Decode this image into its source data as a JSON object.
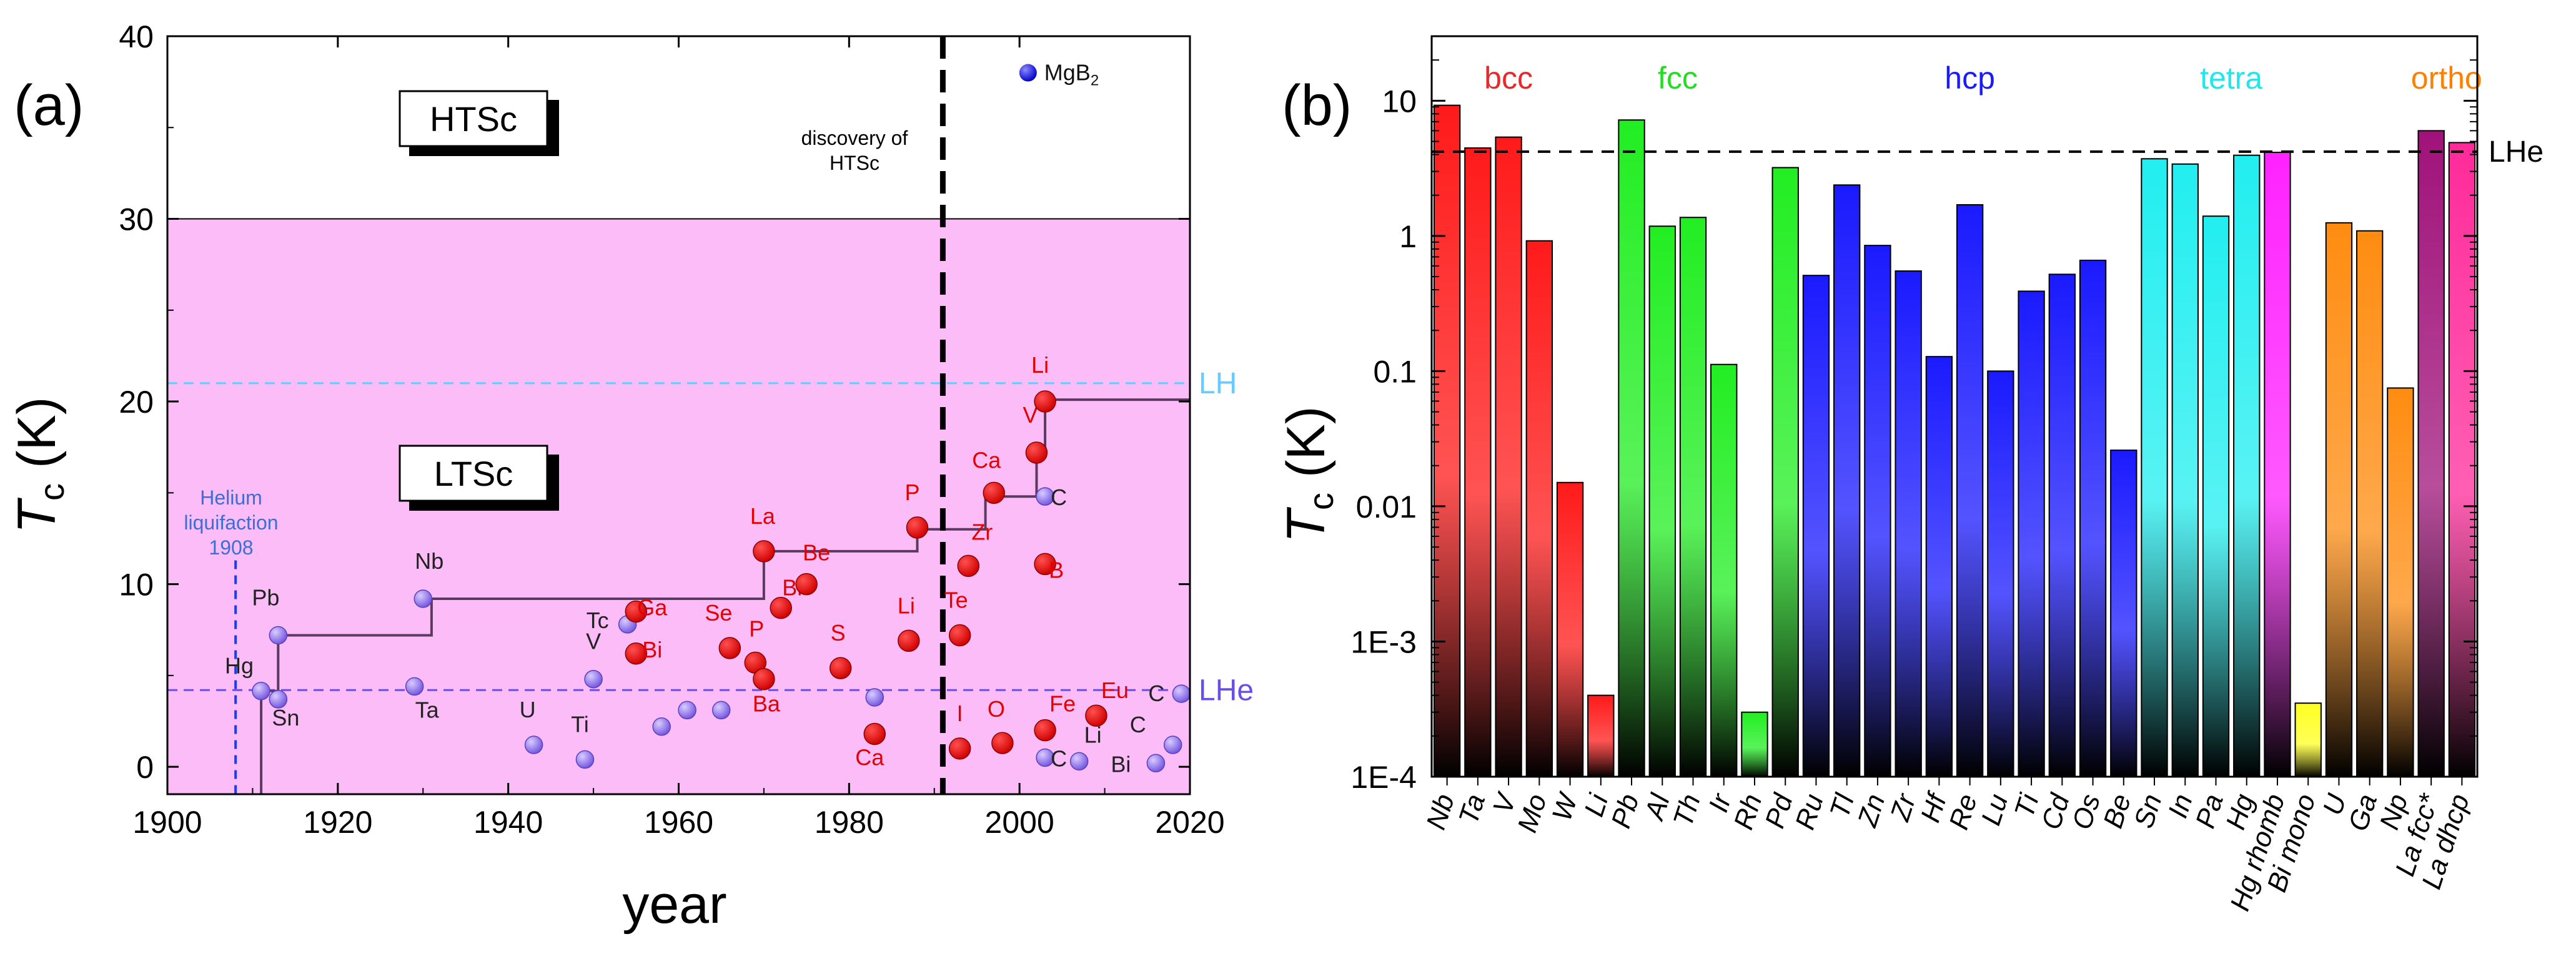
{
  "chart_data": [
    {
      "type": "scatter",
      "panel_label": "(a)",
      "xlabel": "year",
      "ylabel_main": "T",
      "ylabel_sub": "c",
      "ylabel_unit": " (K)",
      "xlim": [
        1900,
        2020
      ],
      "ylim": [
        -1.5,
        40
      ],
      "xticks": [
        1900,
        1920,
        1940,
        1960,
        1980,
        2000,
        2020
      ],
      "yticks": [
        0,
        10,
        20,
        30,
        40
      ],
      "region_hts": {
        "label": "HTSc",
        "from": 30,
        "to": 40
      },
      "region_lts": {
        "label": "LTSc",
        "from": -1.5,
        "to": 30,
        "color": "#fbbcf7"
      },
      "hlines": [
        {
          "label": "LH",
          "y": 21,
          "color": "#66ccff"
        },
        {
          "label": "LHe",
          "y": 4.2,
          "color": "#6b4ee6"
        }
      ],
      "vlines": [
        {
          "x": 1908,
          "color": "#1a3cff",
          "text_lines": [
            "Helium",
            "liquifaction",
            "1908"
          ],
          "text_color": "#3a6fd8"
        },
        {
          "x": 1991,
          "color": "#000000",
          "text_lines": [
            "discovery of",
            "HTSc"
          ],
          "text_color": "#000000"
        }
      ],
      "record_line": [
        [
          1911,
          -1.5
        ],
        [
          1911,
          4.15
        ],
        [
          1913,
          4.15
        ],
        [
          1913,
          7.2
        ],
        [
          1931,
          7.2
        ],
        [
          1931,
          9.2
        ],
        [
          1970,
          9.2
        ],
        [
          1970,
          11.8
        ],
        [
          1988,
          11.8
        ],
        [
          1988,
          13
        ],
        [
          1996,
          13
        ],
        [
          1996,
          14.8
        ],
        [
          2002,
          14.8
        ],
        [
          2002,
          17.2
        ],
        [
          2003,
          17.2
        ],
        [
          2003,
          20.1
        ],
        [
          2020,
          20.1
        ]
      ],
      "series": [
        {
          "name": "elements",
          "color": "#8b6cf0",
          "points": [
            {
              "label": "Hg",
              "x": 1911,
              "y": 4.15
            },
            {
              "label": "Pb",
              "x": 1913,
              "y": 7.2
            },
            {
              "label": "Sn",
              "x": 1913,
              "y": 3.7
            },
            {
              "label": "Ta",
              "x": 1929,
              "y": 4.4
            },
            {
              "label": "Nb",
              "x": 1930,
              "y": 9.2
            },
            {
              "label": "U",
              "x": 1943,
              "y": 1.2
            },
            {
              "label": "Ti",
              "x": 1949,
              "y": 0.4
            },
            {
              "label": "V",
              "x": 1950,
              "y": 4.8
            },
            {
              "label": "Tc",
              "x": 1954,
              "y": 7.8
            },
            {
              "label": "",
              "x": 1958,
              "y": 2.2
            },
            {
              "label": "",
              "x": 1961,
              "y": 3.1
            },
            {
              "label": "",
              "x": 1965,
              "y": 3.1
            },
            {
              "label": "",
              "x": 1983,
              "y": 3.8
            },
            {
              "label": "C",
              "x": 2003,
              "y": 14.8
            },
            {
              "label": "C",
              "x": 2003,
              "y": 0.5
            },
            {
              "label": "Li",
              "x": 2007,
              "y": 0.3
            },
            {
              "label": "Bi",
              "x": 2016,
              "y": 0.2
            },
            {
              "label": "C",
              "x": 2019,
              "y": 4.0
            },
            {
              "label": "C",
              "x": 2018,
              "y": 1.2
            }
          ]
        },
        {
          "name": "under pressure",
          "color": "#e30000",
          "points": [
            {
              "label": "Ga",
              "x": 1955,
              "y": 8.5
            },
            {
              "label": "Bi",
              "x": 1955,
              "y": 6.2
            },
            {
              "label": "Se",
              "x": 1966,
              "y": 6.5
            },
            {
              "label": "P",
              "x": 1969,
              "y": 5.7
            },
            {
              "label": "Ba",
              "x": 1970,
              "y": 4.8
            },
            {
              "label": "La",
              "x": 1970,
              "y": 11.8
            },
            {
              "label": "Bi",
              "x": 1972,
              "y": 8.7
            },
            {
              "label": "Be",
              "x": 1975,
              "y": 10.0
            },
            {
              "label": "S",
              "x": 1979,
              "y": 5.4
            },
            {
              "label": "Ca",
              "x": 1983,
              "y": 1.8
            },
            {
              "label": "Li",
              "x": 1987,
              "y": 6.9
            },
            {
              "label": "P",
              "x": 1988,
              "y": 13.1
            },
            {
              "label": "Te",
              "x": 1993,
              "y": 7.2
            },
            {
              "label": "Zr",
              "x": 1994,
              "y": 11.0
            },
            {
              "label": "I",
              "x": 1993,
              "y": 1.0
            },
            {
              "label": "Ca",
              "x": 1997,
              "y": 15.0
            },
            {
              "label": "O",
              "x": 1998,
              "y": 1.3
            },
            {
              "label": "V",
              "x": 2002,
              "y": 17.2
            },
            {
              "label": "Li",
              "x": 2003,
              "y": 20.0
            },
            {
              "label": "B",
              "x": 2003,
              "y": 11.1
            },
            {
              "label": "Fe",
              "x": 2003,
              "y": 2.0
            },
            {
              "label": "Eu",
              "x": 2009,
              "y": 2.8
            }
          ]
        }
      ],
      "special_point": {
        "label": "MgB",
        "label_sub": "2",
        "x": 2001,
        "y": 38.0,
        "color": "#1d1de0"
      }
    },
    {
      "type": "bar",
      "panel_label": "(b)",
      "ylabel_main": "T",
      "ylabel_sub": "c",
      "ylabel_unit": " (K)",
      "yscale": "log",
      "ylim": [
        0.0001,
        30
      ],
      "yticks": [
        {
          "v": 0.0001,
          "label": "1E-4"
        },
        {
          "v": 0.001,
          "label": "1E-3"
        },
        {
          "v": 0.01,
          "label": "0.01"
        },
        {
          "v": 0.1,
          "label": "0.1"
        },
        {
          "v": 1,
          "label": "1"
        },
        {
          "v": 10,
          "label": "10"
        }
      ],
      "reference": {
        "label": "LHe",
        "value": 4.2
      },
      "groups": [
        {
          "label": "bcc",
          "color": "#e8282a",
          "bar_color": "#ff1a1a",
          "start": 0,
          "end": 4
        },
        {
          "label": "fcc",
          "color": "#22dd22",
          "bar_color": "#22ee22",
          "start": 5,
          "end": 10
        },
        {
          "label": "hcp",
          "color": "#1a1aff",
          "bar_color": "#1a1aff",
          "start": 11,
          "end": 23
        },
        {
          "label": "tetra",
          "color": "#22e5ee",
          "bar_color": "#22eef0",
          "start": 24,
          "end": 27
        },
        {
          "label": "ortho",
          "color": "#ff7f00",
          "bar_color": "#ff8c10",
          "start": 31,
          "end": 34
        }
      ],
      "categories": [
        "Nb",
        "Ta",
        "V",
        "Mo",
        "W",
        "Li",
        "Pb",
        "Al",
        "Th",
        "Ir",
        "Rh",
        "Pd",
        "Ru",
        "Tl",
        "Zn",
        "Zr",
        "Hf",
        "Re",
        "Lu",
        "Ti",
        "Cd",
        "Os",
        "Be",
        "Sn",
        "In",
        "Pa",
        "Hg",
        "Hg rhomb",
        "Bi mono",
        "U",
        "Ga",
        "Np",
        "La fcc*",
        "La dhcp"
      ],
      "values": [
        9.25,
        4.47,
        5.38,
        0.92,
        0.015,
        0.0004,
        7.2,
        1.18,
        1.37,
        0.112,
        0.0003,
        3.2,
        0.51,
        2.38,
        0.85,
        0.55,
        0.128,
        1.7,
        0.1,
        0.39,
        0.52,
        0.66,
        0.026,
        3.72,
        3.4,
        1.4,
        3.95,
        4.15,
        0.00035,
        1.25,
        1.09,
        0.075,
        6.0,
        4.9
      ],
      "bar_colors": [
        "#ff1a1a",
        "#ff1a1a",
        "#ff1a1a",
        "#ff1a1a",
        "#ff1a1a",
        "#ff1a1a",
        "#22ee22",
        "#22ee22",
        "#22ee22",
        "#22ee22",
        "#22ee22",
        "#22ee22",
        "#1a1aff",
        "#1a1aff",
        "#1a1aff",
        "#1a1aff",
        "#1a1aff",
        "#1a1aff",
        "#1a1aff",
        "#1a1aff",
        "#1a1aff",
        "#1a1aff",
        "#1a1aff",
        "#22eef0",
        "#22eef0",
        "#22eef0",
        "#22eef0",
        "#ff22ff",
        "#ffff22",
        "#ff8c10",
        "#ff8c10",
        "#ff8c10",
        "#a0127a",
        "#ff2a9a"
      ]
    }
  ]
}
